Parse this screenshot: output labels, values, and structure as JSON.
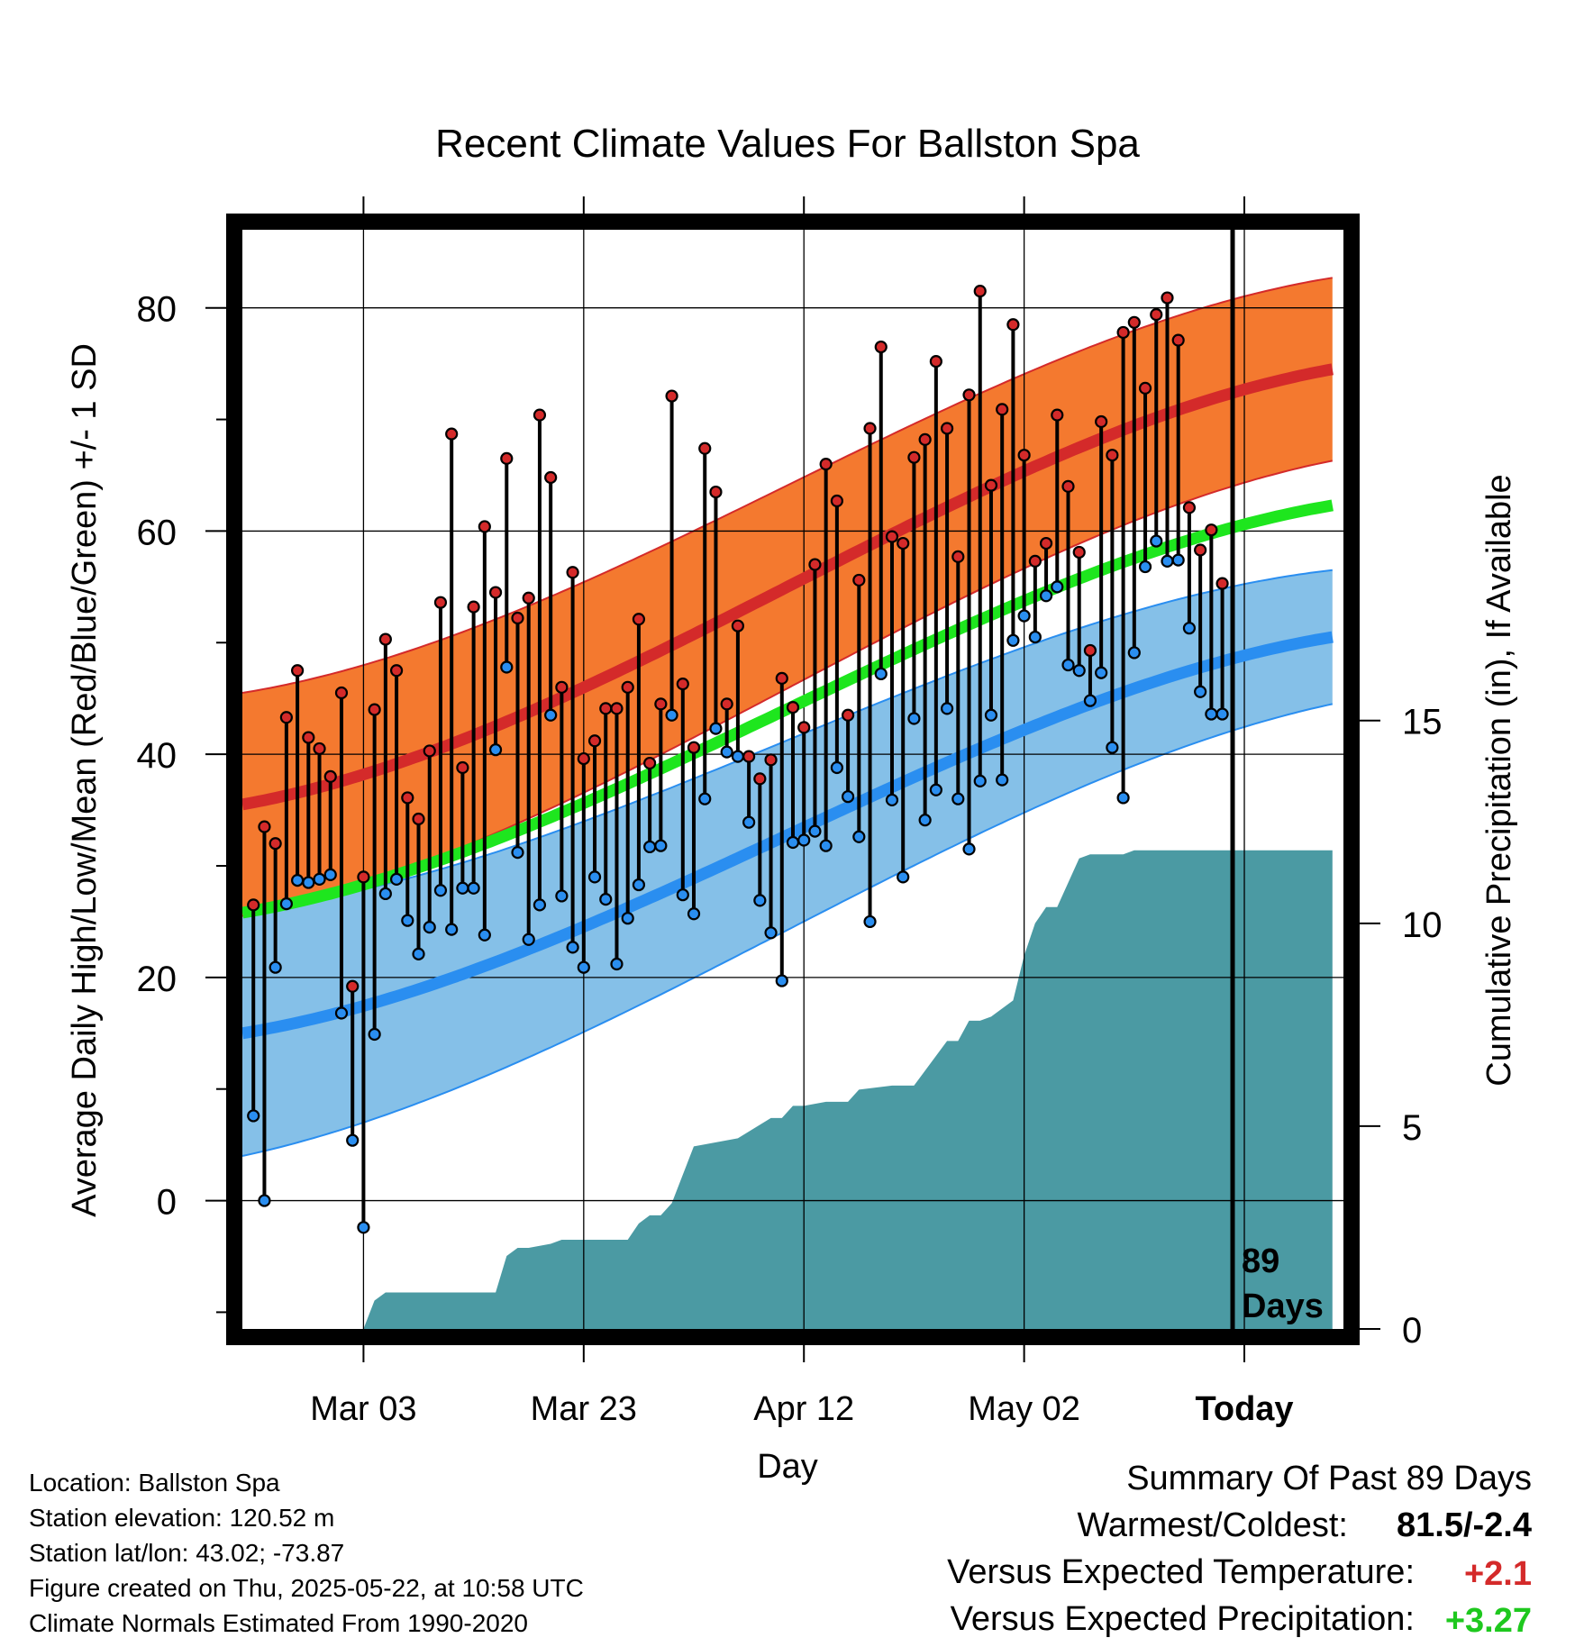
{
  "title": "Recent Climate Values For Ballston Spa",
  "left_axis_label": "Average Daily High/Low/Mean (Red/Blue/Green) +/- 1 SD",
  "right_axis_label": "Cumulative Precipitation (in), If Available",
  "x_axis_label": "Day",
  "days_label": {
    "line1": "89",
    "line2": "Days"
  },
  "station_info": {
    "location": "Location: Ballston Spa",
    "elevation": "Station elevation: 120.52 m",
    "latlon": "Station lat/lon: 43.02; -73.87",
    "created": "Figure created on Thu, 2025-05-22, at 10:58 UTC",
    "normals": "Climate Normals Estimated From 1990-2020"
  },
  "summary": {
    "heading": "Summary Of Past 89 Days",
    "warmest_coldest_label": "Warmest/Coldest:",
    "warmest_coldest_value": "81.5/-2.4",
    "temp_label": "Versus Expected Temperature:",
    "temp_value": "+2.1",
    "precip_label": "Versus Expected Precipitation:",
    "precip_value": "+3.27"
  },
  "colors": {
    "high_mean": "#d42a2a",
    "high_band": "#f4792f",
    "low_mean": "#2a8ef0",
    "low_band": "#85c0e8",
    "mean": "#1ee61e",
    "precip": "#4b9aa3",
    "temp_anomaly": "#d42a2a",
    "precip_anomaly": "#1ec81e"
  },
  "chart_data": {
    "type": "line",
    "x_ticks": [
      "Mar 03",
      "Mar 23",
      "Apr 12",
      "May 02",
      "Today"
    ],
    "x_tick_day_index": [
      10,
      30,
      50,
      70,
      90
    ],
    "x_range": [
      -1,
      99
    ],
    "y_left_range": [
      -11.5,
      87
    ],
    "y_left_ticks": [
      0,
      20,
      40,
      60,
      80
    ],
    "y_right_range": [
      0,
      27.1
    ],
    "y_right_ticks": [
      0,
      5,
      10,
      15
    ],
    "grid": true,
    "series": [
      {
        "name": "High",
        "values": [
          26.5,
          33.5,
          32,
          43.3,
          47.5,
          41.5,
          40.5,
          38,
          45.5,
          19.2,
          29,
          44,
          50.3,
          47.5,
          36.1,
          34.2,
          40.3,
          53.6,
          68.7,
          38.8,
          53.2,
          60.4,
          54.5,
          66.5,
          52.2,
          54,
          70.4,
          64.8,
          46,
          56.3,
          39.6,
          41.2,
          44.1,
          44.1,
          46,
          52.1,
          39.2,
          44.5,
          72.1,
          46.3,
          40.6,
          67.4,
          63.5,
          44.5,
          51.5,
          39.8,
          37.8,
          39.5,
          46.8,
          44.2,
          42.4,
          57,
          66,
          62.7,
          43.5,
          55.6,
          69.2,
          76.5,
          59.5,
          58.9,
          66.6,
          68.2,
          75.2,
          69.2,
          57.7,
          72.2,
          81.5,
          64.1,
          70.9,
          78.5,
          66.8,
          57.3,
          58.9,
          70.4,
          64,
          58.1,
          49.3,
          69.8,
          66.8,
          77.8,
          78.7,
          72.8,
          79.4,
          80.9,
          77.1,
          62.1,
          58.3,
          60.1,
          55.3
        ]
      },
      {
        "name": "Low",
        "values": [
          7.6,
          0,
          20.9,
          26.6,
          28.7,
          28.5,
          28.8,
          29.2,
          16.8,
          5.4,
          -2.4,
          14.9,
          27.5,
          28.8,
          25.1,
          22.1,
          24.5,
          27.8,
          24.3,
          28,
          28,
          23.8,
          40.4,
          47.8,
          31.2,
          23.4,
          26.5,
          43.5,
          27.3,
          22.7,
          20.9,
          29,
          27,
          21.2,
          25.3,
          28.3,
          31.7,
          31.8,
          43.5,
          27.4,
          25.7,
          36,
          42.3,
          40.2,
          39.8,
          33.9,
          26.9,
          24,
          19.7,
          32.1,
          32.3,
          33.1,
          31.8,
          38.8,
          36.2,
          32.6,
          25,
          47.2,
          35.9,
          29,
          43.2,
          34.1,
          36.8,
          44.1,
          36,
          31.5,
          37.6,
          43.5,
          37.7,
          50.2,
          52.4,
          50.5,
          54.2,
          55,
          48,
          47.5,
          44.8,
          47.3,
          40.6,
          36.1,
          49.1,
          56.8,
          59.1,
          57.3,
          57.4,
          51.3,
          45.6,
          43.6,
          43.6
        ]
      },
      {
        "name": "Normal High",
        "x": [
          -1,
          98
        ],
        "values": [
          35.5,
          74.5
        ]
      },
      {
        "name": "Normal Low",
        "x": [
          -1,
          98
        ],
        "values": [
          15,
          50.5
        ]
      },
      {
        "name": "Normal Mean",
        "x": [
          -1,
          98
        ],
        "values": [
          25.8,
          62.3
        ]
      },
      {
        "name": "Cumulative Precipitation",
        "x": [
          -1,
          10,
          11,
          12,
          13,
          22,
          23,
          24,
          25,
          27,
          28,
          34,
          35,
          36,
          37,
          38,
          39,
          40,
          42,
          44,
          47,
          48,
          49,
          50,
          52,
          53,
          54,
          55,
          58,
          59,
          60,
          63,
          64,
          65,
          66,
          67,
          69,
          70,
          71,
          72,
          73,
          75,
          76,
          77,
          78,
          79,
          80,
          98
        ],
        "values": [
          0,
          0,
          0.7,
          0.9,
          0.9,
          0.9,
          1.8,
          2,
          2,
          2.1,
          2.2,
          2.2,
          2.6,
          2.8,
          2.8,
          3.1,
          3.8,
          4.5,
          4.6,
          4.7,
          5.2,
          5.2,
          5.5,
          5.5,
          5.6,
          5.6,
          5.6,
          5.9,
          6,
          6,
          6,
          7.1,
          7.1,
          7.6,
          7.6,
          7.7,
          8.1,
          9.2,
          10,
          10.4,
          10.4,
          11.6,
          11.7,
          11.7,
          11.7,
          11.7,
          11.8,
          11.8
        ]
      }
    ]
  }
}
